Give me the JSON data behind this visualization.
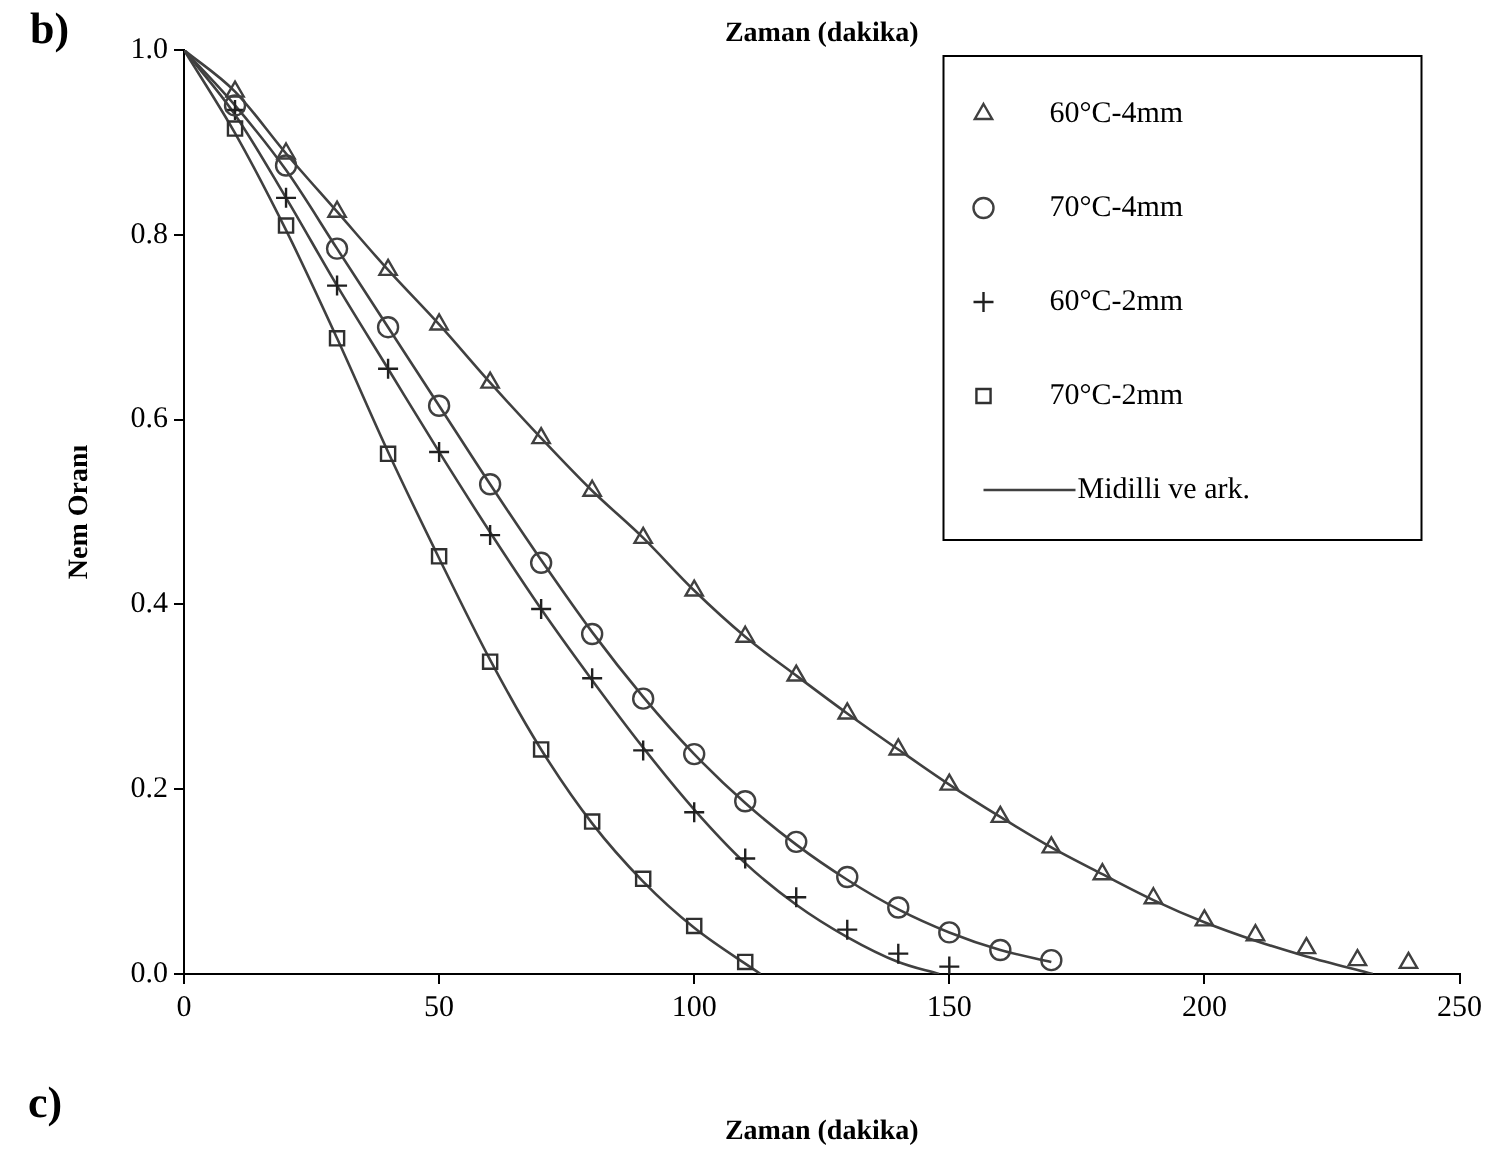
{
  "chart_data": {
    "type": "scatter",
    "xlabel": "Zaman (dakika)",
    "ylabel": "Nem Oranı",
    "annotations": [
      "b)",
      "c)",
      "Zaman (dakika)"
    ],
    "xlim": [
      0,
      250
    ],
    "xticks": [
      0,
      50,
      100,
      150,
      200,
      250
    ],
    "ylim": [
      0,
      1
    ],
    "yticks": [
      {
        "value": 0,
        "label": "0.0"
      },
      0.2,
      0.4,
      0.6,
      0.8,
      {
        "value": 1,
        "label": "1.0"
      }
    ],
    "grid": false,
    "legend": "top right",
    "series": [
      {
        "name": "60°C-4mm",
        "marker": "triangle",
        "color": "#404040",
        "x": [
          10,
          20,
          30,
          40,
          50,
          60,
          70,
          80,
          90,
          100,
          110,
          120,
          130,
          140,
          150,
          160,
          170,
          180,
          190,
          200,
          210,
          220,
          230,
          240
        ],
        "values": [
          0.955,
          0.888,
          0.825,
          0.762,
          0.703,
          0.64,
          0.58,
          0.523,
          0.472,
          0.415,
          0.365,
          0.323,
          0.282,
          0.243,
          0.205,
          0.17,
          0.137,
          0.108,
          0.082,
          0.058,
          0.042,
          0.028,
          0.015,
          0.012
        ]
      },
      {
        "name": "70°C-4mm",
        "marker": "circle",
        "color": "#404040",
        "x": [
          10,
          20,
          30,
          40,
          50,
          60,
          70,
          80,
          90,
          100,
          110,
          120,
          130,
          140,
          150,
          160,
          170
        ],
        "values": [
          0.94,
          0.875,
          0.785,
          0.7,
          0.615,
          0.53,
          0.445,
          0.368,
          0.298,
          0.238,
          0.187,
          0.143,
          0.105,
          0.072,
          0.045,
          0.026,
          0.015
        ]
      },
      {
        "name": "60°C-2mm",
        "marker": "cross",
        "color": "#202020",
        "x": [
          10,
          20,
          30,
          40,
          50,
          60,
          70,
          80,
          90,
          100,
          110,
          120,
          130,
          140,
          150
        ],
        "values": [
          0.935,
          0.84,
          0.745,
          0.655,
          0.565,
          0.475,
          0.395,
          0.32,
          0.242,
          0.175,
          0.125,
          0.083,
          0.048,
          0.022,
          0.008
        ]
      },
      {
        "name": "70°C-2mm",
        "marker": "square",
        "color": "#303030",
        "x": [
          10,
          20,
          30,
          40,
          50,
          60,
          70,
          80,
          90,
          100,
          110
        ],
        "values": [
          0.915,
          0.81,
          0.688,
          0.563,
          0.452,
          0.338,
          0.243,
          0.165,
          0.103,
          0.052,
          0.013
        ]
      },
      {
        "name": "Midilli ve ark.",
        "type": "line",
        "marker": "none",
        "line_style": "solid",
        "color": "#404040",
        "x": [
          0,
          10,
          20,
          30,
          40,
          50,
          60,
          70,
          80,
          90,
          100,
          110,
          120,
          130,
          140,
          150,
          160,
          170,
          180,
          190,
          200,
          210,
          220,
          233
        ],
        "values": [
          1,
          0.955,
          0.888,
          0.825,
          0.762,
          0.703,
          0.64,
          0.58,
          0.523,
          0.472,
          0.415,
          0.365,
          0.323,
          0.282,
          0.243,
          0.205,
          0.17,
          0.137,
          0.108,
          0.08,
          0.056,
          0.036,
          0.019,
          0
        ]
      },
      {
        "type": "line",
        "marker": "none",
        "line_style": "solid",
        "color": "#404040",
        "x": [
          0,
          10,
          20,
          30,
          40,
          50,
          60,
          70,
          80,
          90,
          100,
          110,
          120,
          130,
          140,
          150,
          160,
          170
        ],
        "values": [
          1,
          0.94,
          0.87,
          0.785,
          0.7,
          0.615,
          0.53,
          0.448,
          0.37,
          0.3,
          0.238,
          0.185,
          0.14,
          0.102,
          0.07,
          0.045,
          0.026,
          0.013
        ]
      },
      {
        "type": "line",
        "marker": "none",
        "line_style": "solid",
        "color": "#404040",
        "x": [
          0,
          10,
          20,
          30,
          40,
          50,
          60,
          70,
          80,
          90,
          100,
          110,
          120,
          130,
          140,
          148
        ],
        "values": [
          1,
          0.93,
          0.84,
          0.745,
          0.655,
          0.565,
          0.478,
          0.395,
          0.318,
          0.245,
          0.178,
          0.12,
          0.075,
          0.04,
          0.013,
          0
        ]
      },
      {
        "type": "line",
        "marker": "none",
        "line_style": "solid",
        "color": "#404040",
        "x": [
          0,
          10,
          20,
          30,
          40,
          50,
          60,
          70,
          80,
          90,
          100,
          113
        ],
        "values": [
          1,
          0.91,
          0.805,
          0.688,
          0.565,
          0.45,
          0.34,
          0.243,
          0.163,
          0.1,
          0.05,
          0
        ]
      }
    ]
  }
}
